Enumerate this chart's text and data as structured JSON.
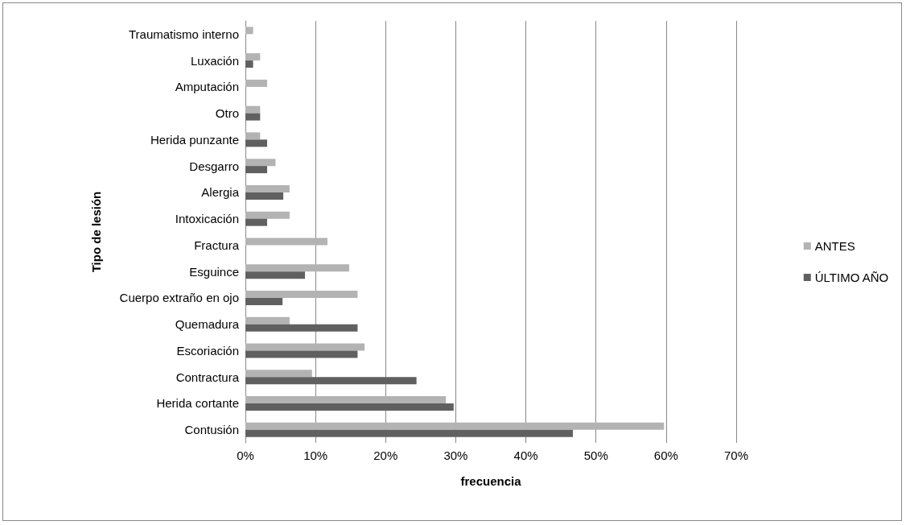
{
  "chart_data": {
    "type": "bar",
    "orientation": "horizontal",
    "xlabel": "frecuencia",
    "ylabel": "Tipo de lesión",
    "categories": [
      "Traumatismo interno",
      "Luxación",
      "Amputación",
      "Otro",
      "Herida punzante",
      "Desgarro",
      "Alergia",
      "Intoxicación",
      "Fractura",
      "Esguince",
      "Cuerpo extraño en ojo",
      "Quemadura",
      "Escoriación",
      "Contractura",
      "Herida cortante",
      "Contusión"
    ],
    "series": [
      {
        "name": "ANTES",
        "color": "#b3b3b3",
        "values": [
          1.1,
          2.1,
          3.1,
          2.1,
          2.1,
          4.3,
          6.3,
          6.3,
          11.7,
          14.8,
          16.0,
          6.3,
          17.0,
          9.5,
          28.6,
          59.7
        ]
      },
      {
        "name": "ÚLTIMO AÑO",
        "color": "#606060",
        "values": [
          null,
          1.1,
          null,
          2.1,
          3.1,
          3.1,
          5.4,
          3.1,
          null,
          8.5,
          5.3,
          16.0,
          16.0,
          24.4,
          29.7,
          46.7
        ]
      }
    ],
    "xlim": [
      0,
      70
    ],
    "xticks": [
      {
        "value": 0,
        "label": "0%"
      },
      {
        "value": 10,
        "label": "10%"
      },
      {
        "value": 20,
        "label": "20%"
      },
      {
        "value": 30,
        "label": "30%"
      },
      {
        "value": 40,
        "label": "40%"
      },
      {
        "value": 50,
        "label": "50%"
      },
      {
        "value": 60,
        "label": "60%"
      },
      {
        "value": 70,
        "label": "70%"
      }
    ],
    "grid": "x",
    "legend": "right"
  }
}
